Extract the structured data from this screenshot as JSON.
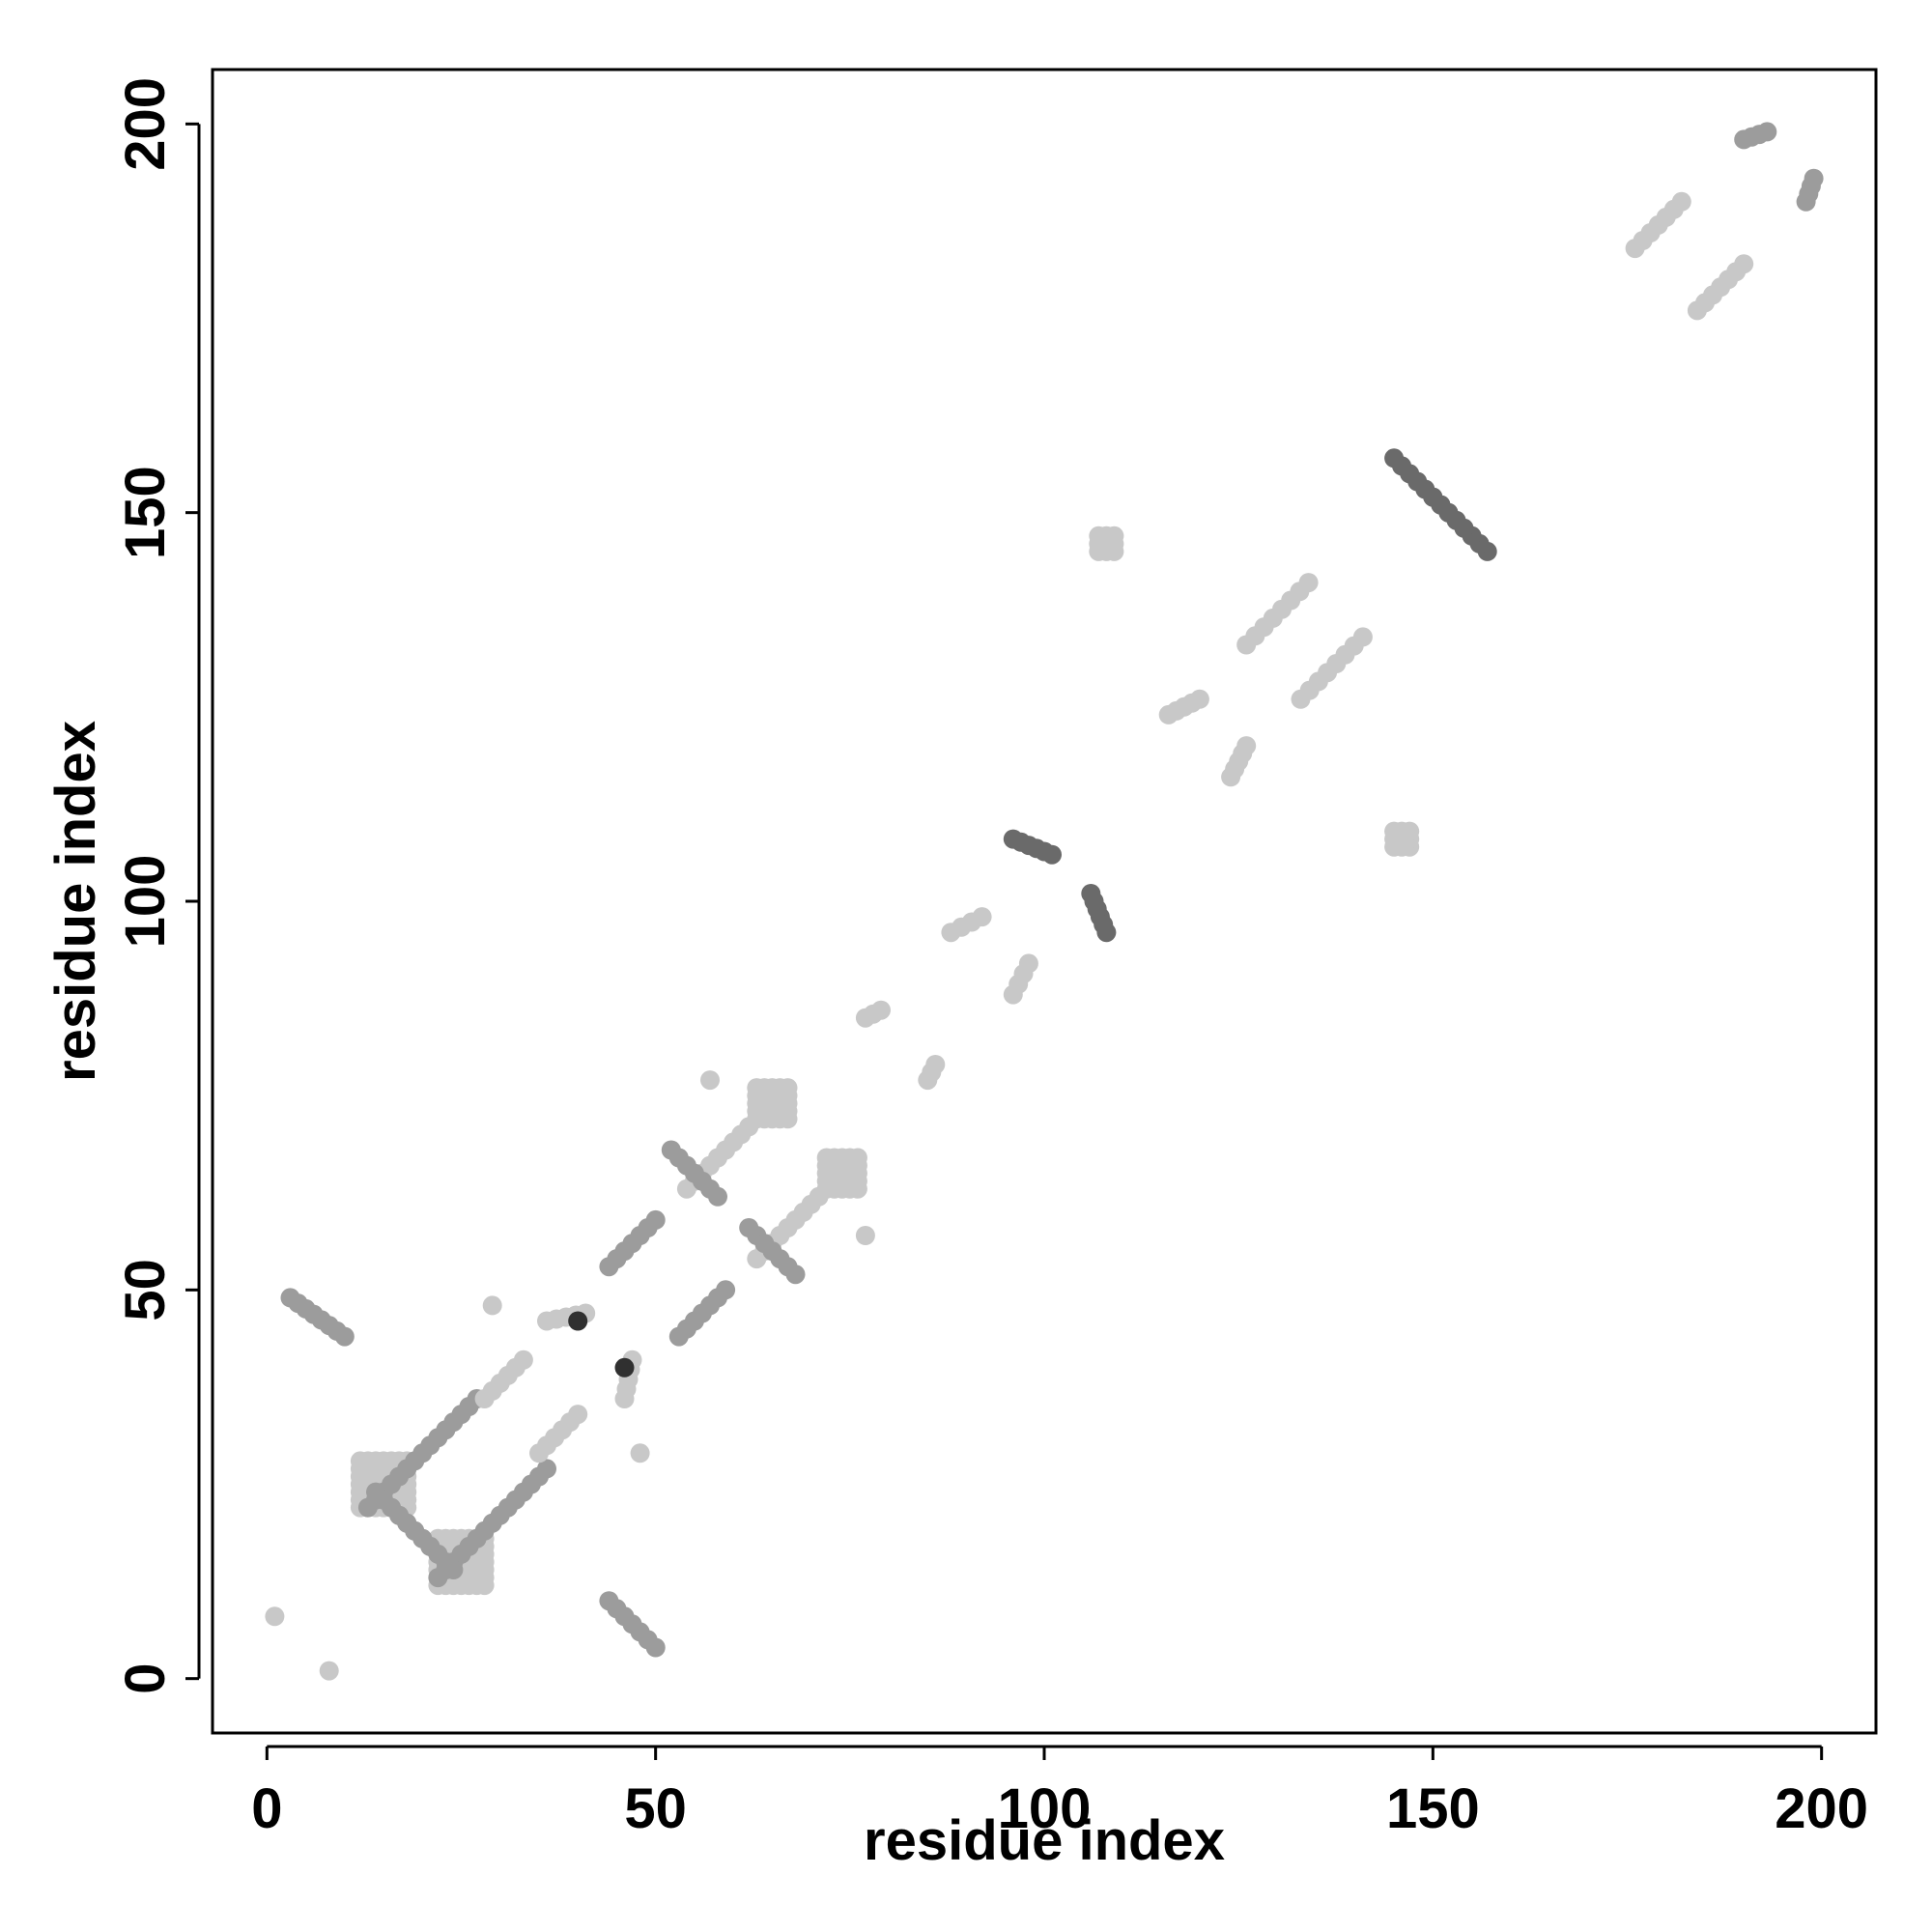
{
  "chart_data": {
    "type": "scatter",
    "title": "",
    "xlabel": "residue index",
    "ylabel": "residue index",
    "xlim": [
      -7,
      207
    ],
    "ylim": [
      -7,
      207
    ],
    "x_ticks": [
      0,
      50,
      100,
      150,
      200
    ],
    "y_ticks": [
      0,
      50,
      100,
      150,
      200
    ],
    "x_tick_labels": [
      "0",
      "50",
      "100",
      "150",
      "200"
    ],
    "y_tick_labels": [
      "0",
      "50",
      "100",
      "150",
      "200"
    ],
    "grid": false,
    "legend": "none",
    "encoding": "grey level = contact strength (1 light grey, 2 mid grey, 3 dark grey, 4 near black)",
    "shade_colors": [
      "#c8c8c8",
      "#9c9c9c",
      "#6a6a6a",
      "#303030"
    ],
    "point_groups": [
      {
        "name": "sheet-a-above",
        "start": [
          13,
          22
        ],
        "end": [
          27,
          36
        ],
        "points": 15,
        "shade": 2
      },
      {
        "name": "sheet-a-below",
        "start": [
          22,
          13
        ],
        "end": [
          36,
          27
        ],
        "points": 15,
        "shade": 2
      },
      {
        "name": "sheet-b-above",
        "start": [
          28,
          36
        ],
        "end": [
          33,
          41
        ],
        "points": 6,
        "shade": 1
      },
      {
        "name": "sheet-b-below",
        "start": [
          35,
          29
        ],
        "end": [
          40,
          34
        ],
        "points": 6,
        "shade": 1
      },
      {
        "name": "antiparallel-a-above",
        "start": [
          14,
          24
        ],
        "end": [
          21,
          17
        ],
        "points": 8,
        "shade": 2
      },
      {
        "name": "antiparallel-a-below",
        "start": [
          24,
          14
        ],
        "end": [
          17,
          21
        ],
        "points": 8,
        "shade": 2
      },
      {
        "name": "corner-above",
        "start": [
          3,
          49
        ],
        "end": [
          10,
          44
        ],
        "points": 8,
        "shade": 2
      },
      {
        "name": "corner-below",
        "start": [
          44,
          10
        ],
        "end": [
          50,
          4
        ],
        "points": 7,
        "shade": 2
      },
      {
        "name": "strand-c-above",
        "start": [
          44,
          53
        ],
        "end": [
          50,
          59
        ],
        "points": 7,
        "shade": 2
      },
      {
        "name": "strand-c-below",
        "start": [
          53,
          44
        ],
        "end": [
          59,
          50
        ],
        "points": 7,
        "shade": 2
      },
      {
        "name": "strand-d-above",
        "start": [
          54,
          63
        ],
        "end": [
          62,
          71
        ],
        "points": 9,
        "shade": 1
      },
      {
        "name": "strand-d-below",
        "start": [
          63,
          54
        ],
        "end": [
          71,
          62
        ],
        "points": 9,
        "shade": 1
      },
      {
        "name": "hairpin-above",
        "start": [
          52,
          68
        ],
        "end": [
          58,
          62
        ],
        "points": 7,
        "shade": 2
      },
      {
        "name": "hairpin-below",
        "start": [
          62,
          58
        ],
        "end": [
          68,
          52
        ],
        "points": 7,
        "shade": 2
      },
      {
        "name": "loop-above",
        "start": [
          36,
          46
        ],
        "end": [
          41,
          47
        ],
        "points": 5,
        "shade": 1
      },
      {
        "name": "loop-below",
        "start": [
          46,
          36
        ],
        "end": [
          47,
          41
        ],
        "points": 5,
        "shade": 1
      },
      {
        "name": "mid-a-above",
        "start": [
          77,
          85
        ],
        "end": [
          79,
          86
        ],
        "points": 3,
        "shade": 1
      },
      {
        "name": "mid-a-below",
        "start": [
          85,
          77
        ],
        "end": [
          86,
          79
        ],
        "points": 3,
        "shade": 1
      },
      {
        "name": "mid-b-above",
        "start": [
          88,
          96
        ],
        "end": [
          92,
          98
        ],
        "points": 4,
        "shade": 1
      },
      {
        "name": "mid-b-below",
        "start": [
          96,
          88
        ],
        "end": [
          98,
          92
        ],
        "points": 4,
        "shade": 1
      },
      {
        "name": "cluster-a-above",
        "start": [
          96,
          108
        ],
        "end": [
          101,
          106
        ],
        "points": 6,
        "shade": 3
      },
      {
        "name": "cluster-a-below",
        "start": [
          108,
          96
        ],
        "end": [
          106,
          101
        ],
        "points": 6,
        "shade": 3
      },
      {
        "name": "mid-c-above",
        "start": [
          116,
          124
        ],
        "end": [
          120,
          126
        ],
        "points": 5,
        "shade": 1
      },
      {
        "name": "mid-c-below",
        "start": [
          124,
          116
        ],
        "end": [
          126,
          120
        ],
        "points": 5,
        "shade": 1
      },
      {
        "name": "mid-d-above",
        "start": [
          126,
          133
        ],
        "end": [
          134,
          141
        ],
        "points": 8,
        "shade": 1
      },
      {
        "name": "mid-d-below",
        "start": [
          133,
          126
        ],
        "end": [
          141,
          134
        ],
        "points": 8,
        "shade": 1
      },
      {
        "name": "cluster-b-above",
        "start": [
          145,
          157
        ],
        "end": [
          152,
          150
        ],
        "points": 8,
        "shade": 3
      },
      {
        "name": "cluster-b-below",
        "start": [
          157,
          145
        ],
        "end": [
          150,
          152
        ],
        "points": 8,
        "shade": 3
      },
      {
        "name": "c-term-a-above",
        "start": [
          176,
          184
        ],
        "end": [
          182,
          190
        ],
        "points": 7,
        "shade": 1
      },
      {
        "name": "c-term-a-below",
        "start": [
          184,
          176
        ],
        "end": [
          190,
          182
        ],
        "points": 7,
        "shade": 1
      },
      {
        "name": "c-term-b-above",
        "start": [
          190,
          198
        ],
        "end": [
          193,
          199
        ],
        "points": 4,
        "shade": 2
      },
      {
        "name": "c-term-b-below",
        "start": [
          198,
          190
        ],
        "end": [
          199,
          193
        ],
        "points": 4,
        "shade": 2
      }
    ],
    "patches": [
      {
        "name": "patch-lower-left-1",
        "center": [
          15,
          25
        ],
        "size": 6,
        "shade": 1
      },
      {
        "name": "patch-lower-left-2",
        "center": [
          25,
          15
        ],
        "size": 6,
        "shade": 1
      },
      {
        "name": "patch-mid-1",
        "center": [
          65,
          74
        ],
        "size": 4,
        "shade": 1
      },
      {
        "name": "patch-mid-2",
        "center": [
          74,
          65
        ],
        "size": 4,
        "shade": 1
      },
      {
        "name": "patch-far-1",
        "center": [
          108,
          146
        ],
        "size": 3,
        "shade": 1
      },
      {
        "name": "patch-far-2",
        "center": [
          146,
          108
        ],
        "size": 3,
        "shade": 1
      }
    ],
    "singletons": [
      {
        "x": 1,
        "y": 8,
        "shade": 1
      },
      {
        "x": 8,
        "y": 1,
        "shade": 1
      },
      {
        "x": 29,
        "y": 48,
        "shade": 1
      },
      {
        "x": 48,
        "y": 29,
        "shade": 1
      },
      {
        "x": 57,
        "y": 77,
        "shade": 1
      },
      {
        "x": 77,
        "y": 57,
        "shade": 1
      },
      {
        "x": 40,
        "y": 46,
        "shade": 4
      },
      {
        "x": 46,
        "y": 40,
        "shade": 4
      }
    ]
  }
}
